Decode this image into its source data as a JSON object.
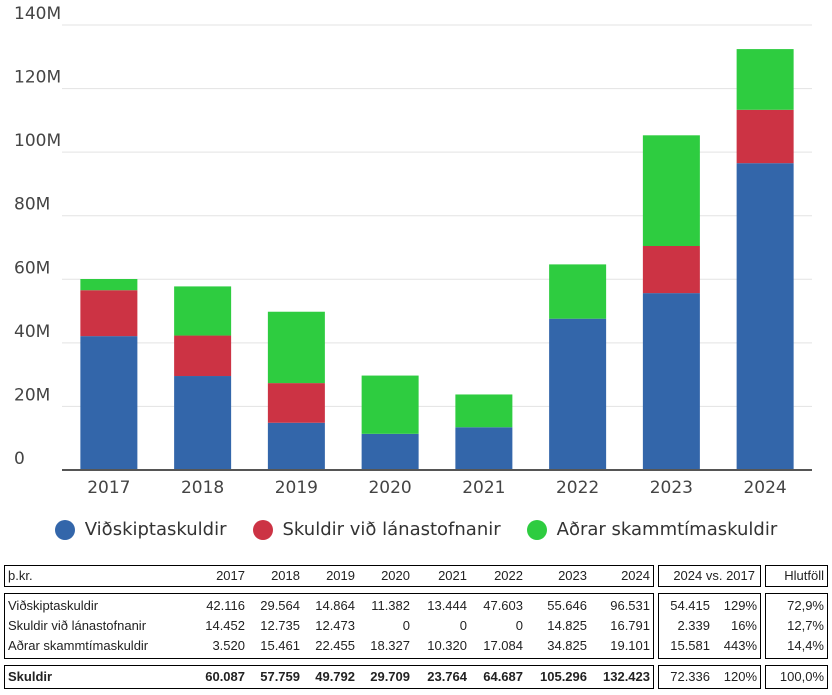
{
  "chart_data": {
    "type": "bar",
    "stacked": true,
    "categories": [
      "2017",
      "2018",
      "2019",
      "2020",
      "2021",
      "2022",
      "2023",
      "2024"
    ],
    "series": [
      {
        "name": "Viðskiptaskuldir",
        "color": "#3366aa",
        "values": [
          42.116,
          29.564,
          14.864,
          11.382,
          13.444,
          47.603,
          55.646,
          96.531
        ]
      },
      {
        "name": "Skuldir við lánastofnanir",
        "color": "#cc3344",
        "values": [
          14.452,
          12.735,
          12.473,
          0,
          0,
          0,
          14.825,
          16.791
        ]
      },
      {
        "name": "Aðrar skammtímaskuldir",
        "color": "#2ecc40",
        "values": [
          3.52,
          15.461,
          22.455,
          18.327,
          10.32,
          17.084,
          34.825,
          19.101
        ]
      }
    ],
    "y_ticks": [
      "0",
      "20M",
      "40M",
      "60M",
      "80M",
      "100M",
      "120M",
      "140M"
    ],
    "ylim": [
      0,
      140
    ],
    "legend_position": "bottom"
  },
  "table": {
    "header": {
      "label": "þ.kr.",
      "years": [
        "2017",
        "2018",
        "2019",
        "2020",
        "2021",
        "2022",
        "2023",
        "2024"
      ],
      "compare": "2024 vs. 2017",
      "share": "Hlutföll"
    },
    "rows": [
      {
        "label": "Viðskiptaskuldir",
        "values": [
          "42.116",
          "29.564",
          "14.864",
          "11.382",
          "13.444",
          "47.603",
          "55.646",
          "96.531"
        ],
        "diff": "54.415",
        "pct": "129%",
        "share": "72,9%"
      },
      {
        "label": "Skuldir við lánastofnanir",
        "values": [
          "14.452",
          "12.735",
          "12.473",
          "0",
          "0",
          "0",
          "14.825",
          "16.791"
        ],
        "diff": "2.339",
        "pct": "16%",
        "share": "12,7%"
      },
      {
        "label": "Aðrar skammtímaskuldir",
        "values": [
          "3.520",
          "15.461",
          "22.455",
          "18.327",
          "10.320",
          "17.084",
          "34.825",
          "19.101"
        ],
        "diff": "15.581",
        "pct": "443%",
        "share": "14,4%"
      }
    ],
    "total": {
      "label": "Skuldir",
      "values": [
        "60.087",
        "57.759",
        "49.792",
        "29.709",
        "23.764",
        "64.687",
        "105.296",
        "132.423"
      ],
      "diff": "72.336",
      "pct": "120%",
      "share": "100,0%"
    }
  }
}
